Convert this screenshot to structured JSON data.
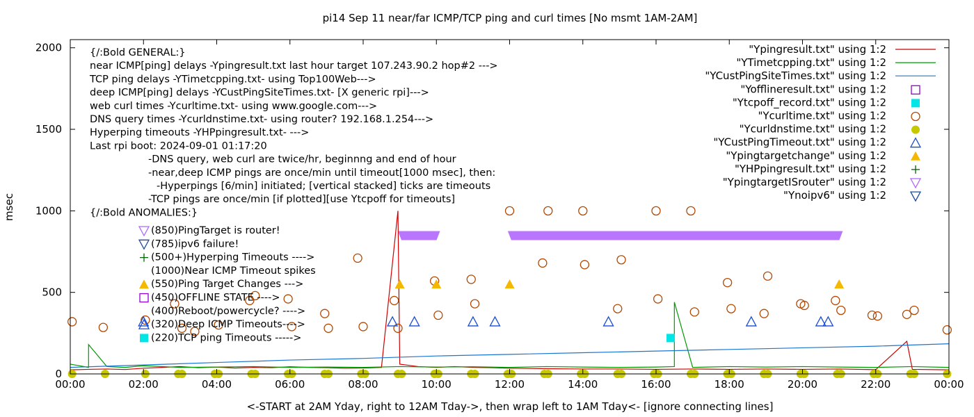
{
  "chart_data": {
    "type": "line",
    "title": "pi14 Sep 11  near/far ICMP/TCP ping and curl times [No msmt 1AM-2AM]",
    "xlabel": "<-START at 2AM Yday, right to 12AM Tday->, then wrap left to 1AM Tday<- [ignore connecting lines]",
    "ylabel": "msec",
    "xlim": [
      0,
      24
    ],
    "ylim": [
      0,
      2050
    ],
    "x_ticks": [
      "00:00",
      "02:00",
      "04:00",
      "06:00",
      "08:00",
      "10:00",
      "12:00",
      "14:00",
      "16:00",
      "18:00",
      "20:00",
      "22:00",
      "00:00"
    ],
    "y_ticks": [
      "0",
      "500",
      "1000",
      "1500",
      "2000"
    ],
    "y_tick_values": [
      0,
      500,
      1000,
      1500,
      2000
    ],
    "grid": false,
    "legend_position": "top-right",
    "legend": [
      {
        "label": "\"Ypingresult.txt\" using 1:2",
        "style": "line",
        "color": "#cc0000"
      },
      {
        "label": "\"YTimetcpping.txt\" using 1:2",
        "style": "line",
        "color": "#009900"
      },
      {
        "label": "\"YCustPingSiteTimes.txt\" using 1:2",
        "style": "line",
        "color": "#1a75d1"
      },
      {
        "label": "\"Yofflineresult.txt\" using 1:2",
        "style": "open-square",
        "color": "#9400d3"
      },
      {
        "label": "\"Ytcpoff_record.txt\" using 1:2",
        "style": "filled-square",
        "color": "#00e5e5"
      },
      {
        "label": "\"Ycurltime.txt\" using 1:2",
        "style": "open-circle",
        "color": "#b34700"
      },
      {
        "label": "\"Ycurldnstime.txt\" using 1:2",
        "style": "filled-circle",
        "color": "#c8c800"
      },
      {
        "label": "\"YCustPingTimeout.txt\" using 1:2",
        "style": "open-triangle-up",
        "color": "#1a4bd1"
      },
      {
        "label": "\"Ypingtargetchange\" using 1:2",
        "style": "filled-triangle-up",
        "color": "#f5b800"
      },
      {
        "label": "\"YHPpingresult.txt\" using 1:2",
        "style": "plus",
        "color": "#006400"
      },
      {
        "label": "\"YpingtargetISrouter\" using 1:2",
        "style": "open-triangle-down",
        "color": "#b266ff"
      },
      {
        "label": "\"Ynoipv6\" using 1:2",
        "style": "open-triangle-down",
        "color": "#1a4b9a"
      }
    ],
    "annotations": [
      "{/:Bold GENERAL:}",
      "near ICMP[ping] delays -Ypingresult.txt last hour target 107.243.90.2 hop#2 --->",
      "TCP ping delays -YTimetcpping.txt- using Top100Web--->",
      "deep ICMP[ping] delays -YCustPingSiteTimes.txt- [X generic rpi]--->",
      "web curl times -Ycurltime.txt- using www.google.com--->",
      "DNS query times -Ycurldnstime.txt- using router? 192.168.1.254--->",
      "Hyperping timeouts -YHPpingresult.txt- --->",
      "Last rpi boot: 2024-09-01 01:17:20",
      "-DNS query, web curl are twice/hr, beginnng and end of hour",
      "-near,deep ICMP pings are once/min until timeout[1000 msec], then:",
      "-Hyperpings [6/min] initiated; [vertical stacked] ticks are timeouts",
      "-TCP pings are once/min [if plotted][use Ytcpoff for timeouts]",
      "{/:Bold ANOMALIES:}"
    ],
    "anomaly_legend": [
      {
        "style": "open-triangle-down",
        "color": "#b266ff",
        "label": "(850)PingTarget is router!"
      },
      {
        "style": "open-triangle-down",
        "color": "#1a4b9a",
        "label": "(785)ipv6 failure!"
      },
      {
        "style": "plus",
        "color": "#006400",
        "label": "(500+)Hyperping Timeouts ---->"
      },
      {
        "style": "none",
        "color": "#000000",
        "label": "(1000)Near ICMP Timeout spikes"
      },
      {
        "style": "filled-triangle-up",
        "color": "#f5b800",
        "label": "(550)Ping Target Changes --->"
      },
      {
        "style": "open-square",
        "color": "#9400d3",
        "label": "(450)OFFLINE STATE ---->"
      },
      {
        "style": "none",
        "color": "#000000",
        "label": "(400)Reboot/powercycle? ---->"
      },
      {
        "style": "open-triangle-up",
        "color": "#1a4bd1",
        "label": "(320)Deep ICMP Timeouts---->"
      },
      {
        "style": "filled-square",
        "color": "#00e5e5",
        "label": "(220)TCP ping Timeouts ----->"
      }
    ],
    "series": [
      {
        "name": "\"Ypingresult.txt\" using 1:2",
        "style": "line",
        "color": "#cc0000",
        "x": [
          0.0,
          0.5,
          1.0,
          1.5,
          2.0,
          2.5,
          3.0,
          3.5,
          4.0,
          4.5,
          5.0,
          5.5,
          6.0,
          6.5,
          7.0,
          7.5,
          8.0,
          8.5,
          8.95,
          9.0,
          9.5,
          10.0,
          10.5,
          11.0,
          11.5,
          12.0,
          13.0,
          14.0,
          15.0,
          16.0,
          17.0,
          18.0,
          19.0,
          20.0,
          21.0,
          22.0,
          22.85,
          23.0,
          24.0
        ],
        "y": [
          25,
          28,
          30,
          27,
          35,
          40,
          45,
          38,
          42,
          36,
          40,
          38,
          44,
          40,
          38,
          35,
          36,
          40,
          1000,
          60,
          45,
          40,
          45,
          40,
          38,
          35,
          32,
          30,
          30,
          28,
          30,
          28,
          30,
          28,
          30,
          26,
          200,
          28,
          25
        ]
      },
      {
        "name": "\"YTimetcpping.txt\" using 1:2",
        "style": "line",
        "color": "#009900",
        "x": [
          0.0,
          0.5,
          0.5,
          1.0,
          1.5,
          2.0,
          2.5,
          3.0,
          4.0,
          5.0,
          6.0,
          7.0,
          8.0,
          9.0,
          10.0,
          11.0,
          12.0,
          13.0,
          14.0,
          15.0,
          16.0,
          16.5,
          16.5,
          17.0,
          18.0,
          19.0,
          20.0,
          21.0,
          22.0,
          23.0,
          24.0
        ],
        "y": [
          60,
          40,
          180,
          45,
          40,
          50,
          45,
          40,
          42,
          45,
          40,
          42,
          40,
          45,
          42,
          44,
          40,
          45,
          42,
          40,
          42,
          45,
          440,
          40,
          45,
          42,
          45,
          42,
          40,
          45,
          40
        ]
      },
      {
        "name": "\"YCustPingSiteTimes.txt\" using 1:2",
        "style": "line",
        "color": "#1a75d1",
        "x": [
          0.0,
          2.0,
          4.0,
          6.0,
          8.0,
          10.0,
          12.0,
          14.0,
          16.0,
          18.0,
          20.0,
          22.0,
          24.0
        ],
        "y": [
          40,
          55,
          70,
          85,
          95,
          110,
          120,
          130,
          140,
          150,
          160,
          170,
          185
        ]
      },
      {
        "name": "\"Ycurltime.txt\" using 1:2",
        "style": "open-circle",
        "color": "#b34700",
        "x": [
          0.05,
          0.9,
          2.05,
          2.85,
          3.05,
          3.4,
          4.05,
          4.9,
          5.05,
          5.95,
          6.05,
          6.95,
          7.05,
          7.85,
          8.0,
          8.85,
          8.95,
          9.95,
          10.05,
          10.95,
          11.05,
          12.0,
          12.9,
          13.05,
          14.0,
          14.05,
          14.95,
          15.05,
          16.0,
          16.05,
          16.95,
          17.05,
          17.95,
          18.05,
          18.95,
          19.05,
          19.95,
          20.05,
          20.9,
          21.05,
          21.9,
          22.05,
          22.85,
          23.05,
          23.95
        ],
        "y": [
          320,
          285,
          330,
          430,
          280,
          260,
          300,
          450,
          480,
          460,
          290,
          370,
          280,
          710,
          290,
          450,
          280,
          570,
          360,
          580,
          430,
          1000,
          680,
          1000,
          1000,
          670,
          400,
          700,
          1000,
          460,
          1000,
          380,
          560,
          400,
          370,
          600,
          430,
          420,
          450,
          390,
          360,
          355,
          365,
          390,
          270
        ]
      },
      {
        "name": "\"Ycurldnstime.txt\" using 1:2",
        "style": "filled-circle",
        "color": "#c8c800",
        "x": [
          0.05,
          0.95,
          2.05,
          2.95,
          3.05,
          3.95,
          4.05,
          4.95,
          5.05,
          5.95,
          6.05,
          6.95,
          7.05,
          7.95,
          8.05,
          8.95,
          9.05,
          9.95,
          10.05,
          10.95,
          11.05,
          11.95,
          12.05,
          12.95,
          13.05,
          13.95,
          14.05,
          14.95,
          15.05,
          15.95,
          16.05,
          16.95,
          17.05,
          17.95,
          18.05,
          18.95,
          19.05,
          19.95,
          20.05,
          20.95,
          21.05,
          21.95,
          22.05,
          22.95,
          23.05,
          23.95
        ],
        "y": [
          0,
          0,
          0,
          0,
          0,
          0,
          0,
          0,
          0,
          0,
          0,
          0,
          0,
          0,
          0,
          0,
          0,
          0,
          0,
          0,
          0,
          0,
          0,
          0,
          0,
          0,
          0,
          0,
          0,
          0,
          0,
          0,
          0,
          0,
          0,
          0,
          0,
          0,
          0,
          0,
          0,
          0,
          0,
          0,
          0,
          0
        ]
      },
      {
        "name": "\"YCustPingTimeout.txt\" using 1:2",
        "style": "open-triangle-up",
        "color": "#1a4bd1",
        "x": [
          2.0,
          8.8,
          9.4,
          11.0,
          11.6,
          14.7,
          18.6,
          20.5,
          20.7
        ],
        "y": [
          320,
          320,
          320,
          320,
          320,
          320,
          320,
          320,
          320
        ]
      },
      {
        "name": "\"Ypingtargetchange\" using 1:2",
        "style": "filled-triangle-up",
        "color": "#f5b800",
        "x": [
          9.0,
          10.0,
          12.0,
          21.0
        ],
        "y": [
          550,
          550,
          550,
          550
        ]
      },
      {
        "name": "\"Ytcpoff_record.txt\" using 1:2",
        "style": "filled-square",
        "color": "#00e5e5",
        "x": [
          16.4
        ],
        "y": [
          220
        ]
      },
      {
        "name": "\"YpingtargetISrouter\" using 1:2",
        "style": "band",
        "color": "#b266ff",
        "ranges": [
          [
            8.95,
            10.1
          ],
          [
            11.95,
            21.1
          ]
        ],
        "y": 850
      }
    ]
  }
}
